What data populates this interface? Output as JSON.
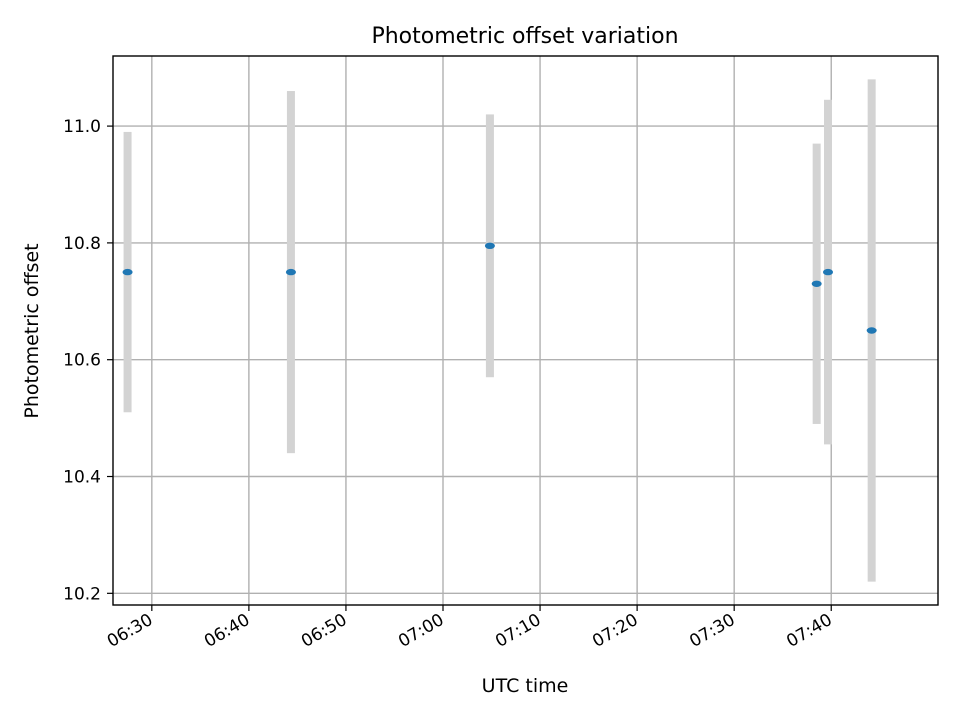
{
  "chart_data": {
    "type": "scatter",
    "title": "Photometric offset variation",
    "xlabel": "UTC time",
    "ylabel": "Photometric offset",
    "x_tick_labels": [
      "06:30",
      "06:40",
      "06:50",
      "07:00",
      "07:10",
      "07:20",
      "07:30",
      "07:40"
    ],
    "y_tick_labels": [
      "10.2",
      "10.4",
      "10.6",
      "10.8",
      "11.0"
    ],
    "x_ticks": [
      "06:30",
      "06:40",
      "06:50",
      "07:00",
      "07:10",
      "07:20",
      "07:30",
      "07:40"
    ],
    "y_ticks": [
      10.2,
      10.4,
      10.6,
      10.8,
      11.0
    ],
    "xlim": [
      "06:26:00",
      "07:51:00"
    ],
    "ylim": [
      10.18,
      11.12
    ],
    "grid": true,
    "marker_color": "#1f77b4",
    "errorbar_color": "#d3d3d3",
    "points": [
      {
        "time": "06:27:30",
        "y": 10.75,
        "y_low": 10.51,
        "y_high": 10.99
      },
      {
        "time": "06:44:20",
        "y": 10.75,
        "y_low": 10.44,
        "y_high": 11.06
      },
      {
        "time": "07:04:50",
        "y": 10.795,
        "y_low": 10.57,
        "y_high": 11.02
      },
      {
        "time": "07:38:30",
        "y": 10.73,
        "y_low": 10.49,
        "y_high": 10.97
      },
      {
        "time": "07:39:40",
        "y": 10.75,
        "y_low": 10.455,
        "y_high": 11.045
      },
      {
        "time": "07:44:10",
        "y": 10.65,
        "y_low": 10.22,
        "y_high": 11.08
      }
    ]
  }
}
